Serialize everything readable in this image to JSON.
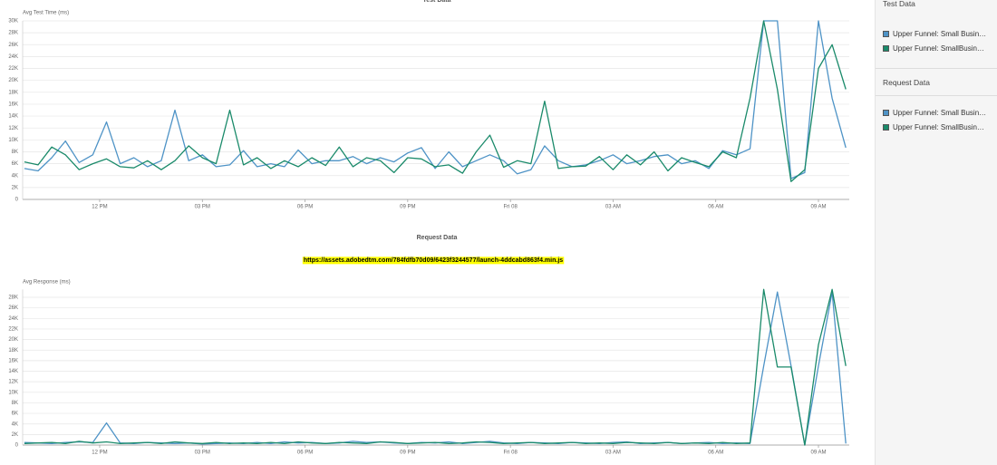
{
  "chart_data": [
    {
      "type": "line",
      "title": "Test Data",
      "y_label": "Avg Test Time (ms)",
      "grid": true,
      "x": [
        9.8,
        10.2,
        10.6,
        11.0,
        11.4,
        11.8,
        12.2,
        12.6,
        13.0,
        13.4,
        13.8,
        14.2,
        14.6,
        15.0,
        15.4,
        15.8,
        16.2,
        16.6,
        17.0,
        17.4,
        17.8,
        18.2,
        18.6,
        19.0,
        19.4,
        19.8,
        20.2,
        20.6,
        21.0,
        21.4,
        21.8,
        22.2,
        22.6,
        23.0,
        23.4,
        23.8,
        24.2,
        24.6,
        25.0,
        25.4,
        25.8,
        26.2,
        26.6,
        27.0,
        27.4,
        27.8,
        28.2,
        28.6,
        29.0,
        29.4,
        29.8,
        30.2,
        30.6,
        31.0,
        31.4,
        31.8,
        32.2,
        32.6,
        33.0,
        33.4,
        33.8
      ],
      "xlim": [
        9.75,
        33.9
      ],
      "xticks": [
        {
          "value": 12,
          "label": "12 PM"
        },
        {
          "value": 15,
          "label": "03 PM"
        },
        {
          "value": 18,
          "label": "06 PM"
        },
        {
          "value": 21,
          "label": "09 PM"
        },
        {
          "value": 24,
          "label": "Fri 08"
        },
        {
          "value": 27,
          "label": "03 AM"
        },
        {
          "value": 30,
          "label": "06 AM"
        },
        {
          "value": 33,
          "label": "09 AM"
        }
      ],
      "ylim": [
        0,
        30000
      ],
      "yticks": [
        0,
        {
          "value": 2000,
          "label": "2K"
        },
        {
          "value": 4000,
          "label": "4K"
        },
        {
          "value": 6000,
          "label": "6K"
        },
        {
          "value": 8000,
          "label": "8K"
        },
        {
          "value": 10000,
          "label": "10K"
        },
        {
          "value": 12000,
          "label": "12K"
        },
        {
          "value": 14000,
          "label": "14K"
        },
        {
          "value": 16000,
          "label": "16K"
        },
        {
          "value": 18000,
          "label": "18K"
        },
        {
          "value": 20000,
          "label": "20K"
        },
        {
          "value": 22000,
          "label": "22K"
        },
        {
          "value": 24000,
          "label": "24K"
        },
        {
          "value": 26000,
          "label": "26K"
        },
        {
          "value": 28000,
          "label": "28K"
        },
        {
          "value": 30000,
          "label": "30K"
        }
      ],
      "series": [
        {
          "name": "Upper Funnel: Small Busin…",
          "color": "#4e93c6",
          "values": [
            5200,
            4800,
            7000,
            9800,
            6200,
            7500,
            13000,
            6000,
            7000,
            5500,
            6500,
            15000,
            6500,
            7500,
            5500,
            5800,
            8200,
            5500,
            6000,
            5500,
            8300,
            6000,
            6500,
            6500,
            7200,
            6000,
            7000,
            6300,
            7800,
            8700,
            5200,
            8000,
            5500,
            6500,
            7500,
            6500,
            4300,
            5000,
            9000,
            6500,
            5500,
            5800,
            6500,
            7500,
            6000,
            6500,
            7200,
            7500,
            6000,
            6500,
            5200,
            8200,
            7500,
            8500,
            30000,
            30000,
            3500,
            4500,
            30000,
            17000,
            8700
          ]
        },
        {
          "name": "Upper Funnel: SmallBusin…",
          "color": "#1a8a6a",
          "values": [
            6300,
            5800,
            8800,
            7500,
            5000,
            6000,
            6800,
            5500,
            5300,
            6500,
            5000,
            6500,
            9000,
            7000,
            6000,
            15000,
            5800,
            7000,
            5200,
            6500,
            5500,
            7000,
            5700,
            8800,
            5500,
            7000,
            6500,
            4500,
            7000,
            6800,
            5500,
            5800,
            4400,
            8000,
            10800,
            5400,
            6500,
            6000,
            16500,
            5200,
            5500,
            5600,
            7200,
            5000,
            7500,
            5800,
            8000,
            4800,
            7000,
            6200,
            5500,
            8000,
            7000,
            17000,
            30000,
            18500,
            3000,
            5000,
            22000,
            26000,
            18500
          ]
        }
      ]
    },
    {
      "type": "line",
      "title": "Request Data",
      "subtitle": "https://assets.adobedtm.com/784fdfb70d09/6423f3244577/launch-4ddcabd863f4.min.js",
      "y_label": "Avg Response (ms)",
      "grid": true,
      "x": [
        9.8,
        10.2,
        10.6,
        11.0,
        11.4,
        11.8,
        12.2,
        12.6,
        13.0,
        13.4,
        13.8,
        14.2,
        14.6,
        15.0,
        15.4,
        15.8,
        16.2,
        16.6,
        17.0,
        17.4,
        17.8,
        18.2,
        18.6,
        19.0,
        19.4,
        19.8,
        20.2,
        20.6,
        21.0,
        21.4,
        21.8,
        22.2,
        22.6,
        23.0,
        23.4,
        23.8,
        24.2,
        24.6,
        25.0,
        25.4,
        25.8,
        26.2,
        26.6,
        27.0,
        27.4,
        27.8,
        28.2,
        28.6,
        29.0,
        29.4,
        29.8,
        30.2,
        30.6,
        31.0,
        31.4,
        31.8,
        32.2,
        32.6,
        33.0,
        33.4,
        33.8
      ],
      "xlim": [
        9.75,
        33.9
      ],
      "xticks": [
        {
          "value": 12,
          "label": "12 PM"
        },
        {
          "value": 15,
          "label": "03 PM"
        },
        {
          "value": 18,
          "label": "06 PM"
        },
        {
          "value": 21,
          "label": "09 PM"
        },
        {
          "value": 24,
          "label": "Fri 08"
        },
        {
          "value": 27,
          "label": "03 AM"
        },
        {
          "value": 30,
          "label": "06 AM"
        },
        {
          "value": 33,
          "label": "09 AM"
        }
      ],
      "ylim": [
        0,
        29500
      ],
      "yticks": [
        0,
        {
          "value": 2000,
          "label": "2K"
        },
        {
          "value": 4000,
          "label": "4K"
        },
        {
          "value": 6000,
          "label": "6K"
        },
        {
          "value": 8000,
          "label": "8K"
        },
        {
          "value": 10000,
          "label": "10K"
        },
        {
          "value": 12000,
          "label": "12K"
        },
        {
          "value": 14000,
          "label": "14K"
        },
        {
          "value": 16000,
          "label": "16K"
        },
        {
          "value": 18000,
          "label": "18K"
        },
        {
          "value": 20000,
          "label": "20K"
        },
        {
          "value": 22000,
          "label": "22K"
        },
        {
          "value": 24000,
          "label": "24K"
        },
        {
          "value": 26000,
          "label": "26K"
        },
        {
          "value": 28000,
          "label": "28K"
        }
      ],
      "series": [
        {
          "name": "Upper Funnel: Small Busin…",
          "color": "#4e93c6",
          "values": [
            500,
            400,
            300,
            500,
            600,
            500,
            4200,
            400,
            300,
            500,
            400,
            300,
            400,
            200,
            300,
            400,
            300,
            500,
            300,
            600,
            400,
            500,
            300,
            400,
            700,
            500,
            600,
            400,
            300,
            500,
            400,
            600,
            300,
            500,
            700,
            400,
            300,
            500,
            400,
            300,
            500,
            400,
            300,
            500,
            600,
            300,
            400,
            500,
            300,
            400,
            500,
            300,
            400,
            300,
            15000,
            29000,
            15000,
            0,
            15000,
            29000,
            300
          ]
        },
        {
          "name": "Upper Funnel: SmallBusin…",
          "color": "#1a8a6a",
          "values": [
            300,
            400,
            500,
            300,
            700,
            400,
            600,
            300,
            400,
            500,
            300,
            600,
            400,
            300,
            500,
            300,
            400,
            300,
            500,
            300,
            600,
            400,
            300,
            500,
            400,
            300,
            600,
            500,
            300,
            400,
            500,
            300,
            400,
            600,
            500,
            300,
            400,
            500,
            300,
            400,
            500,
            300,
            400,
            300,
            500,
            400,
            300,
            500,
            300,
            400,
            300,
            500,
            300,
            400,
            29500,
            14800,
            14800,
            0,
            19000,
            29500,
            15000
          ]
        }
      ]
    }
  ]
}
